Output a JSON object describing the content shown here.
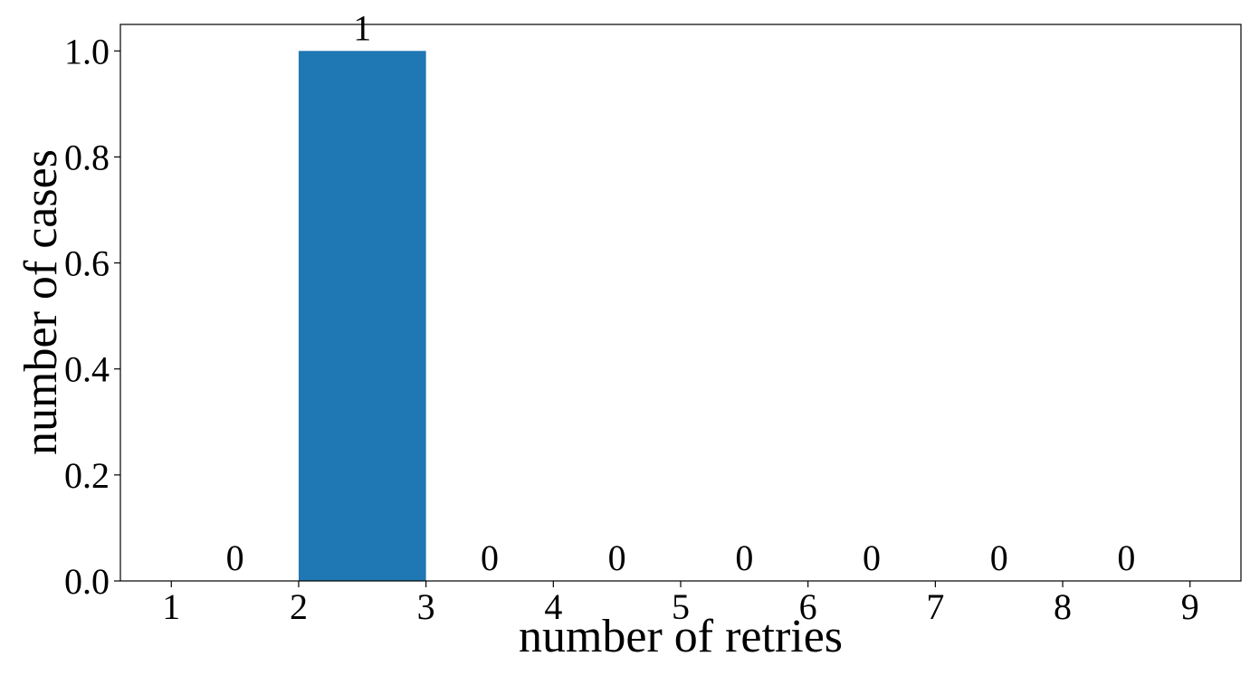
{
  "chart_data": {
    "type": "histogram",
    "x_label": "number of retries",
    "y_label": "number of cases",
    "bins": [
      1,
      2,
      3,
      4,
      5,
      6,
      7,
      8,
      9
    ],
    "values": [
      0,
      1,
      0,
      0,
      0,
      0,
      0,
      0
    ],
    "color": "#1f77b4",
    "xlim": [
      0.6,
      9.4
    ],
    "xticks": [
      1,
      2,
      3,
      4,
      5,
      6,
      7,
      8,
      9
    ],
    "ylim": [
      0,
      1.05
    ],
    "yticks": [
      {
        "value": 0,
        "label": "0.0"
      },
      {
        "value": 0.2,
        "label": "0.2"
      },
      {
        "value": 0.4,
        "label": "0.4"
      },
      {
        "value": 0.6,
        "label": "0.6"
      },
      {
        "value": 0.8,
        "label": "0.8"
      },
      {
        "value": 1,
        "label": "1.0"
      }
    ],
    "grid": false
  }
}
